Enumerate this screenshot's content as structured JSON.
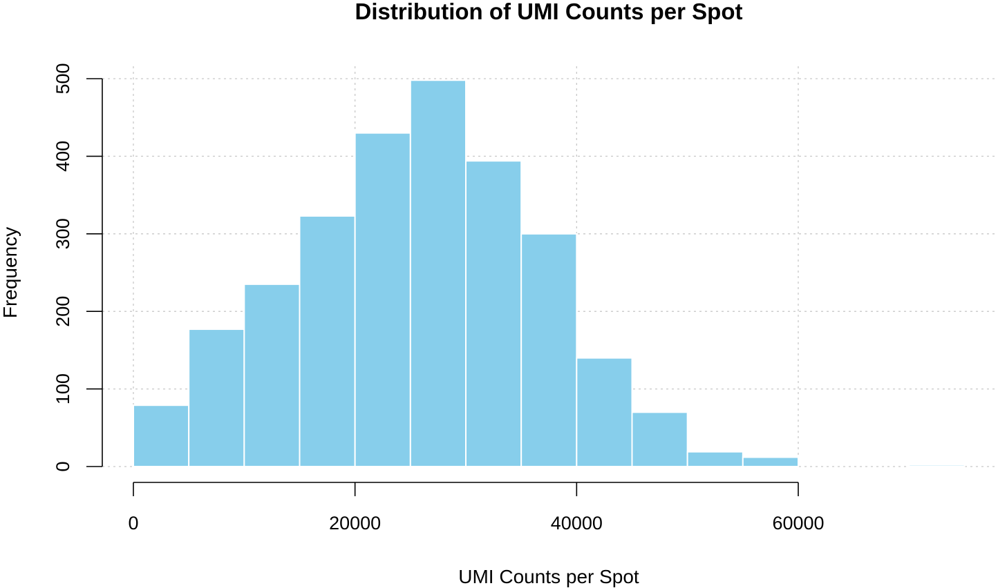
{
  "chart_data": {
    "type": "bar",
    "subtype": "histogram",
    "title": "Distribution of UMI Counts per Spot",
    "xlabel": "UMI Counts per Spot",
    "ylabel": "Frequency",
    "bin_edges": [
      0,
      5000,
      10000,
      15000,
      20000,
      25000,
      30000,
      35000,
      40000,
      45000,
      50000,
      55000,
      60000,
      65000,
      70000,
      75000
    ],
    "values": [
      79,
      177,
      235,
      323,
      430,
      498,
      394,
      300,
      140,
      70,
      19,
      12,
      0,
      0,
      2
    ],
    "xlim": [
      0,
      78000
    ],
    "ylim": [
      0,
      500
    ],
    "xticks": [
      0,
      20000,
      40000,
      60000
    ],
    "xtick_labels": [
      "0",
      "20000",
      "40000",
      "60000"
    ],
    "yticks": [
      0,
      100,
      200,
      300,
      400,
      500
    ],
    "ytick_labels": [
      "0",
      "100",
      "200",
      "300",
      "400",
      "500"
    ],
    "grid": true,
    "colors": {
      "bar_fill": "#87ceeb",
      "bar_border": "#ffffff",
      "grid": "#c8c8c8"
    }
  }
}
